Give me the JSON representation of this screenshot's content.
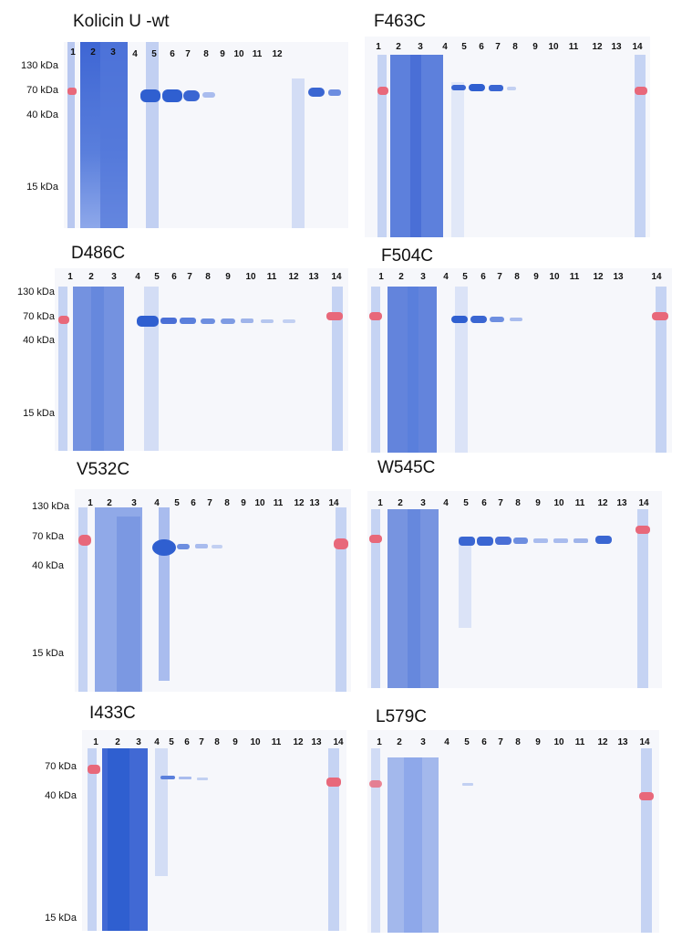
{
  "colors": {
    "gel_background": "#f6f7fb",
    "lysate_blue": "#4a6fd6",
    "band_blue": "#2f5fd0",
    "marker_red": "#e8687a",
    "marker_blue": "#8aa4e6"
  },
  "panels": [
    {
      "id": "kolicin-u-wt",
      "title": "Kolicin U -wt",
      "lane_labels": [
        "1",
        "2",
        "3",
        "4",
        "5",
        "6",
        "7",
        "8",
        "9",
        "10",
        "11",
        "12"
      ],
      "mw_labels": [
        "130 kDa",
        "70 kDa",
        "40 kDa",
        "15 kDa"
      ]
    },
    {
      "id": "f463c",
      "title": "F463C",
      "lane_labels": [
        "1",
        "2",
        "3",
        "4",
        "5",
        "6",
        "7",
        "8",
        "9",
        "10",
        "11",
        "12",
        "13",
        "14"
      ],
      "mw_labels": []
    },
    {
      "id": "d486c",
      "title": "D486C",
      "lane_labels": [
        "1",
        "2",
        "3",
        "4",
        "5",
        "6",
        "7",
        "8",
        "9",
        "10",
        "11",
        "12",
        "13",
        "14"
      ],
      "mw_labels": [
        "130 kDa",
        "70 kDa",
        "40 kDa",
        "15 kDa"
      ]
    },
    {
      "id": "f504c",
      "title": "F504C",
      "lane_labels": [
        "1",
        "2",
        "3",
        "4",
        "5",
        "6",
        "7",
        "8",
        "9",
        "10",
        "11",
        "12",
        "13",
        "14"
      ],
      "mw_labels": []
    },
    {
      "id": "v532c",
      "title": "V532C",
      "lane_labels": [
        "1",
        "2",
        "3",
        "4",
        "5",
        "6",
        "7",
        "8",
        "9",
        "10",
        "11",
        "12",
        "13",
        "14"
      ],
      "mw_labels": [
        "130 kDa",
        "70 kDa",
        "40 kDa",
        "15 kDa"
      ]
    },
    {
      "id": "w545c",
      "title": "W545C",
      "lane_labels": [
        "1",
        "2",
        "3",
        "4",
        "5",
        "6",
        "7",
        "8",
        "9",
        "10",
        "11",
        "12",
        "13",
        "14"
      ],
      "mw_labels": []
    },
    {
      "id": "i433c",
      "title": "I433C",
      "lane_labels": [
        "1",
        "2",
        "3",
        "4",
        "5",
        "6",
        "7",
        "8",
        "9",
        "10",
        "11",
        "12",
        "13",
        "14"
      ],
      "mw_labels": [
        "70 kDa",
        "40 kDa",
        "15 kDa"
      ]
    },
    {
      "id": "l579c",
      "title": "L579C",
      "lane_labels": [
        "1",
        "2",
        "3",
        "4",
        "5",
        "6",
        "7",
        "8",
        "9",
        "10",
        "11",
        "12",
        "13",
        "14"
      ],
      "mw_labels": []
    }
  ]
}
